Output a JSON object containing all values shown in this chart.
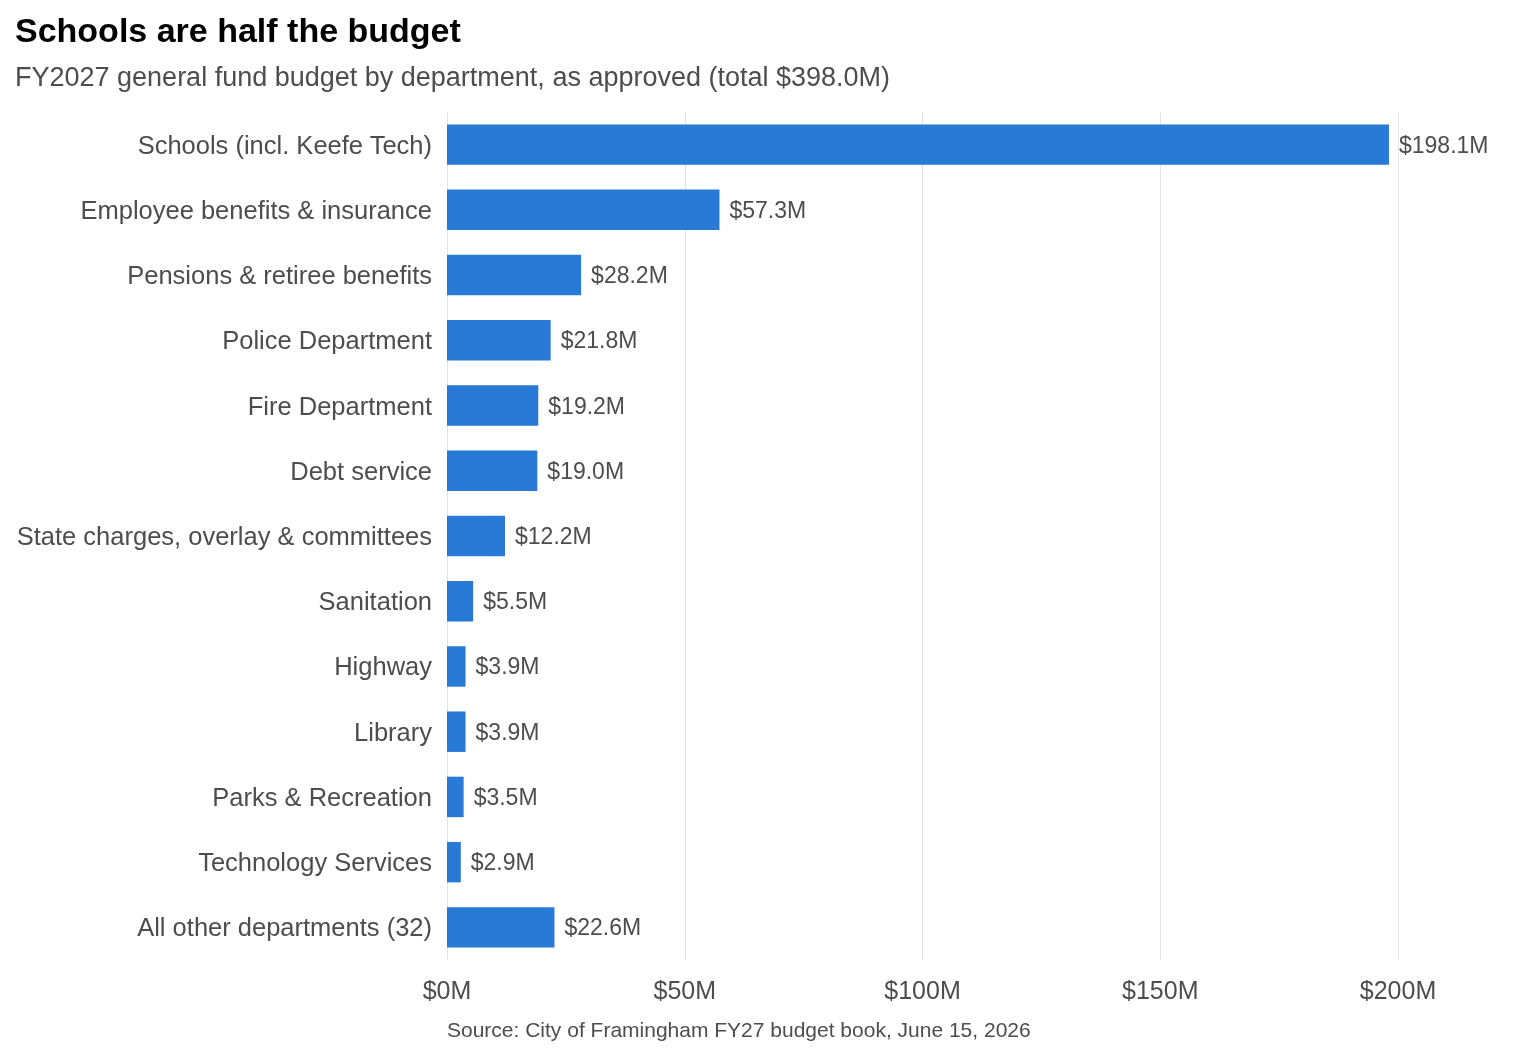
{
  "chart_data": {
    "type": "bar",
    "orientation": "horizontal",
    "title": "Schools are half the budget",
    "subtitle": "FY2027 general fund budget by department, as approved (total $398.0M)",
    "categories": [
      "Schools (incl. Keefe Tech)",
      "Employee benefits & insurance",
      "Pensions & retiree benefits",
      "Police Department",
      "Fire Department",
      "Debt service",
      "State charges, overlay & committees",
      "Sanitation",
      "Highway",
      "Library",
      "Parks & Recreation",
      "Technology Services",
      "All other departments (32)"
    ],
    "values": [
      198.1,
      57.3,
      28.2,
      21.8,
      19.2,
      19.0,
      12.2,
      5.5,
      3.9,
      3.9,
      3.5,
      2.9,
      22.6
    ],
    "value_labels": [
      "$198.1M",
      "$57.3M",
      "$28.2M",
      "$21.8M",
      "$19.2M",
      "$19.0M",
      "$12.2M",
      "$5.5M",
      "$3.9M",
      "$3.9M",
      "$3.5M",
      "$2.9M",
      "$22.6M"
    ],
    "color": "#2979d6",
    "xlim": [
      0,
      200
    ],
    "xticks": [
      {
        "value": 0,
        "label": "$0M"
      },
      {
        "value": 50,
        "label": "$50M"
      },
      {
        "value": 100,
        "label": "$100M"
      },
      {
        "value": 150,
        "label": "$150M"
      },
      {
        "value": 200,
        "label": "$200M"
      }
    ],
    "grid": "x",
    "annotations": [
      "Source: City of Framingham FY27 budget book, June 15, 2026"
    ]
  }
}
